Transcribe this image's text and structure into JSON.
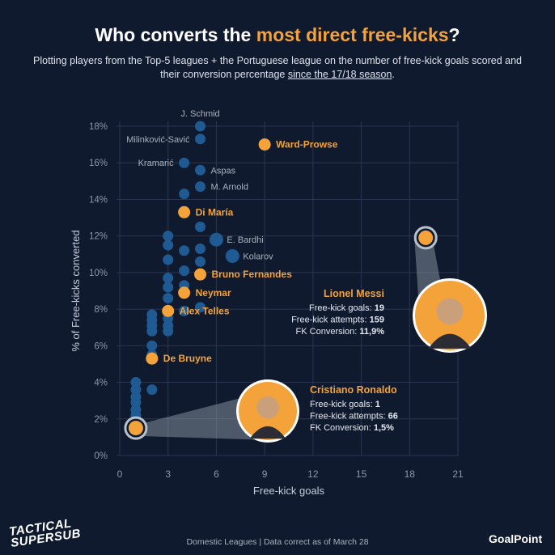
{
  "header": {
    "title_pre": "Who converts the ",
    "title_highlight": "most direct free-kicks",
    "title_post": "?",
    "subtitle_pre": "Plotting players from the Top-5 leagues + the Portuguese league on the number of free-kick goals scored and their conversion percentage ",
    "subtitle_link": "since the 17/18 season",
    "subtitle_post": "."
  },
  "colors": {
    "background": "#0f1a2e",
    "highlight": "#f4a23a",
    "blue_dot": "#1f5a93",
    "text": "#e8ecf2",
    "grid": "#2a3650"
  },
  "chart_data": {
    "type": "scatter",
    "xlabel": "Free-kick goals",
    "ylabel": "% of Free-kicks converted",
    "xlim": [
      0,
      21
    ],
    "ylim": [
      0,
      18
    ],
    "xticks": [
      0,
      3,
      6,
      9,
      12,
      15,
      18,
      21
    ],
    "xtick_labels": [
      "0",
      "3",
      "6",
      "9",
      "12",
      "15",
      "18",
      "21"
    ],
    "yticks": [
      0,
      2,
      4,
      6,
      8,
      10,
      12,
      14,
      16,
      18
    ],
    "ytick_labels": [
      "0%",
      "2%",
      "4%",
      "6%",
      "8%",
      "10%",
      "12%",
      "14%",
      "16%",
      "18%"
    ],
    "grid": true,
    "highlighted": [
      {
        "name": "Ward-Prowse",
        "x": 9,
        "y": 17.0
      },
      {
        "name": "Di María",
        "x": 4,
        "y": 13.3
      },
      {
        "name": "Bruno Fernandes",
        "x": 5,
        "y": 9.9
      },
      {
        "name": "Neymar",
        "x": 4,
        "y": 8.9
      },
      {
        "name": "Alex Telles",
        "x": 3,
        "y": 7.9
      },
      {
        "name": "De Bruyne",
        "x": 2,
        "y": 5.3
      }
    ],
    "labeled_others": [
      {
        "name": "J. Schmid",
        "x": 5,
        "y": 18.0
      },
      {
        "name": "Milinković-Savić",
        "x": 5,
        "y": 17.3
      },
      {
        "name": "Kramarić",
        "x": 4,
        "y": 16.0
      },
      {
        "name": "Aspas",
        "x": 5,
        "y": 15.6
      },
      {
        "name": "M. Arnold",
        "x": 5,
        "y": 14.7
      },
      {
        "name": "E. Bardhi",
        "x": 6,
        "y": 11.8
      },
      {
        "name": "Kolarov",
        "x": 7,
        "y": 10.9
      }
    ],
    "others": [
      {
        "x": 4,
        "y": 14.3
      },
      {
        "x": 5,
        "y": 12.5
      },
      {
        "x": 5,
        "y": 11.3
      },
      {
        "x": 5,
        "y": 10.6
      },
      {
        "x": 5,
        "y": 8.1
      },
      {
        "x": 4,
        "y": 11.2
      },
      {
        "x": 4,
        "y": 10.1
      },
      {
        "x": 4,
        "y": 9.3
      },
      {
        "x": 4,
        "y": 7.9
      },
      {
        "x": 3,
        "y": 12.0
      },
      {
        "x": 3,
        "y": 11.5
      },
      {
        "x": 3,
        "y": 10.7
      },
      {
        "x": 3,
        "y": 9.7
      },
      {
        "x": 3,
        "y": 9.2
      },
      {
        "x": 3,
        "y": 8.6
      },
      {
        "x": 3,
        "y": 7.5
      },
      {
        "x": 3,
        "y": 7.1
      },
      {
        "x": 3,
        "y": 6.8
      },
      {
        "x": 2,
        "y": 7.7
      },
      {
        "x": 2,
        "y": 7.4
      },
      {
        "x": 2,
        "y": 7.1
      },
      {
        "x": 2,
        "y": 6.8
      },
      {
        "x": 2,
        "y": 6.0
      },
      {
        "x": 2,
        "y": 5.5
      },
      {
        "x": 2,
        "y": 3.6
      },
      {
        "x": 1,
        "y": 4.0
      },
      {
        "x": 1,
        "y": 3.6
      },
      {
        "x": 1,
        "y": 3.2
      },
      {
        "x": 1,
        "y": 2.9
      },
      {
        "x": 1,
        "y": 2.5
      },
      {
        "x": 1,
        "y": 2.2
      },
      {
        "x": 1,
        "y": 1.9
      }
    ],
    "callouts": [
      {
        "name": "Lionel Messi",
        "x": 19,
        "y": 11.9,
        "goals_label": "Free-kick goals: ",
        "goals": "19",
        "attempts_label": "Free-kick attempts: ",
        "attempts": "159",
        "conv_label": "FK Conversion: ",
        "conv": "11,9%"
      },
      {
        "name": "Cristiano Ronaldo",
        "x": 1,
        "y": 1.5,
        "goals_label": "Free-kick goals: ",
        "goals": "1",
        "attempts_label": "Free-kick attempts: ",
        "attempts": "66",
        "conv_label": "FK Conversion: ",
        "conv": "1,5%"
      }
    ]
  },
  "footer": {
    "left_line1": "TACTICAL",
    "left_line2": "SUPERSUB",
    "center": "Domestic Leagues | Data correct as of March 28",
    "right": "GoalPoint"
  }
}
